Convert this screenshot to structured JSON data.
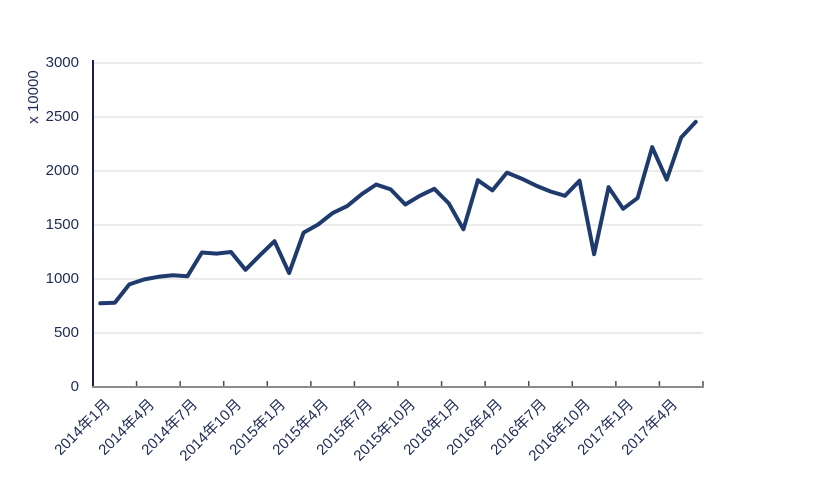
{
  "chart_data": {
    "type": "line",
    "title": "",
    "xlabel": "",
    "ylabel": "x 10000",
    "ylim": [
      0,
      3000
    ],
    "yticks": [
      0,
      500,
      1000,
      1500,
      2000,
      2500,
      3000
    ],
    "grid": true,
    "legend": "none",
    "xtick_label_every": 3,
    "x": [
      "2014年1月",
      "2014年2月",
      "2014年3月",
      "2014年4月",
      "2014年5月",
      "2014年6月",
      "2014年7月",
      "2014年8月",
      "2014年9月",
      "2014年10月",
      "2014年11月",
      "2014年12月",
      "2015年1月",
      "2015年2月",
      "2015年3月",
      "2015年4月",
      "2015年5月",
      "2015年6月",
      "2015年7月",
      "2015年8月",
      "2015年9月",
      "2015年10月",
      "2015年11月",
      "2015年12月",
      "2016年1月",
      "2016年2月",
      "2016年3月",
      "2016年4月",
      "2016年5月",
      "2016年6月",
      "2016年7月",
      "2016年8月",
      "2016年9月",
      "2016年10月",
      "2016年11月",
      "2016年12月",
      "2017年1月",
      "2017年2月",
      "2017年3月",
      "2017年4月",
      "2017年5月",
      "2017年6月"
    ],
    "visible_xtick_labels": [
      "2014年1月",
      "2014年4月",
      "2014年7月",
      "2014年10月",
      "2015年1月",
      "2015年4月",
      "2015年7月",
      "2015年10月",
      "2016年1月",
      "2016年4月",
      "2016年7月",
      "2016年10月",
      "2017年1月",
      "2017年4月"
    ],
    "series": [
      {
        "name": "",
        "values": [
          775,
          780,
          950,
          995,
          1020,
          1035,
          1025,
          1245,
          1235,
          1250,
          1085,
          1220,
          1350,
          1055,
          1430,
          1505,
          1610,
          1675,
          1785,
          1875,
          1830,
          1690,
          1770,
          1835,
          1700,
          1460,
          1915,
          1820,
          1985,
          1930,
          1865,
          1810,
          1770,
          1910,
          1230,
          1850,
          1650,
          1750,
          2220,
          1920,
          2310,
          2455
        ]
      }
    ],
    "colors": {
      "line": "#1f3b6e",
      "grid": "#d9d9d9",
      "y_axis": "#1a2150",
      "x_axis": "#8c8c8c",
      "tick": "#4d4d4d",
      "text": "#1f2a56",
      "background": "#ffffff"
    }
  }
}
